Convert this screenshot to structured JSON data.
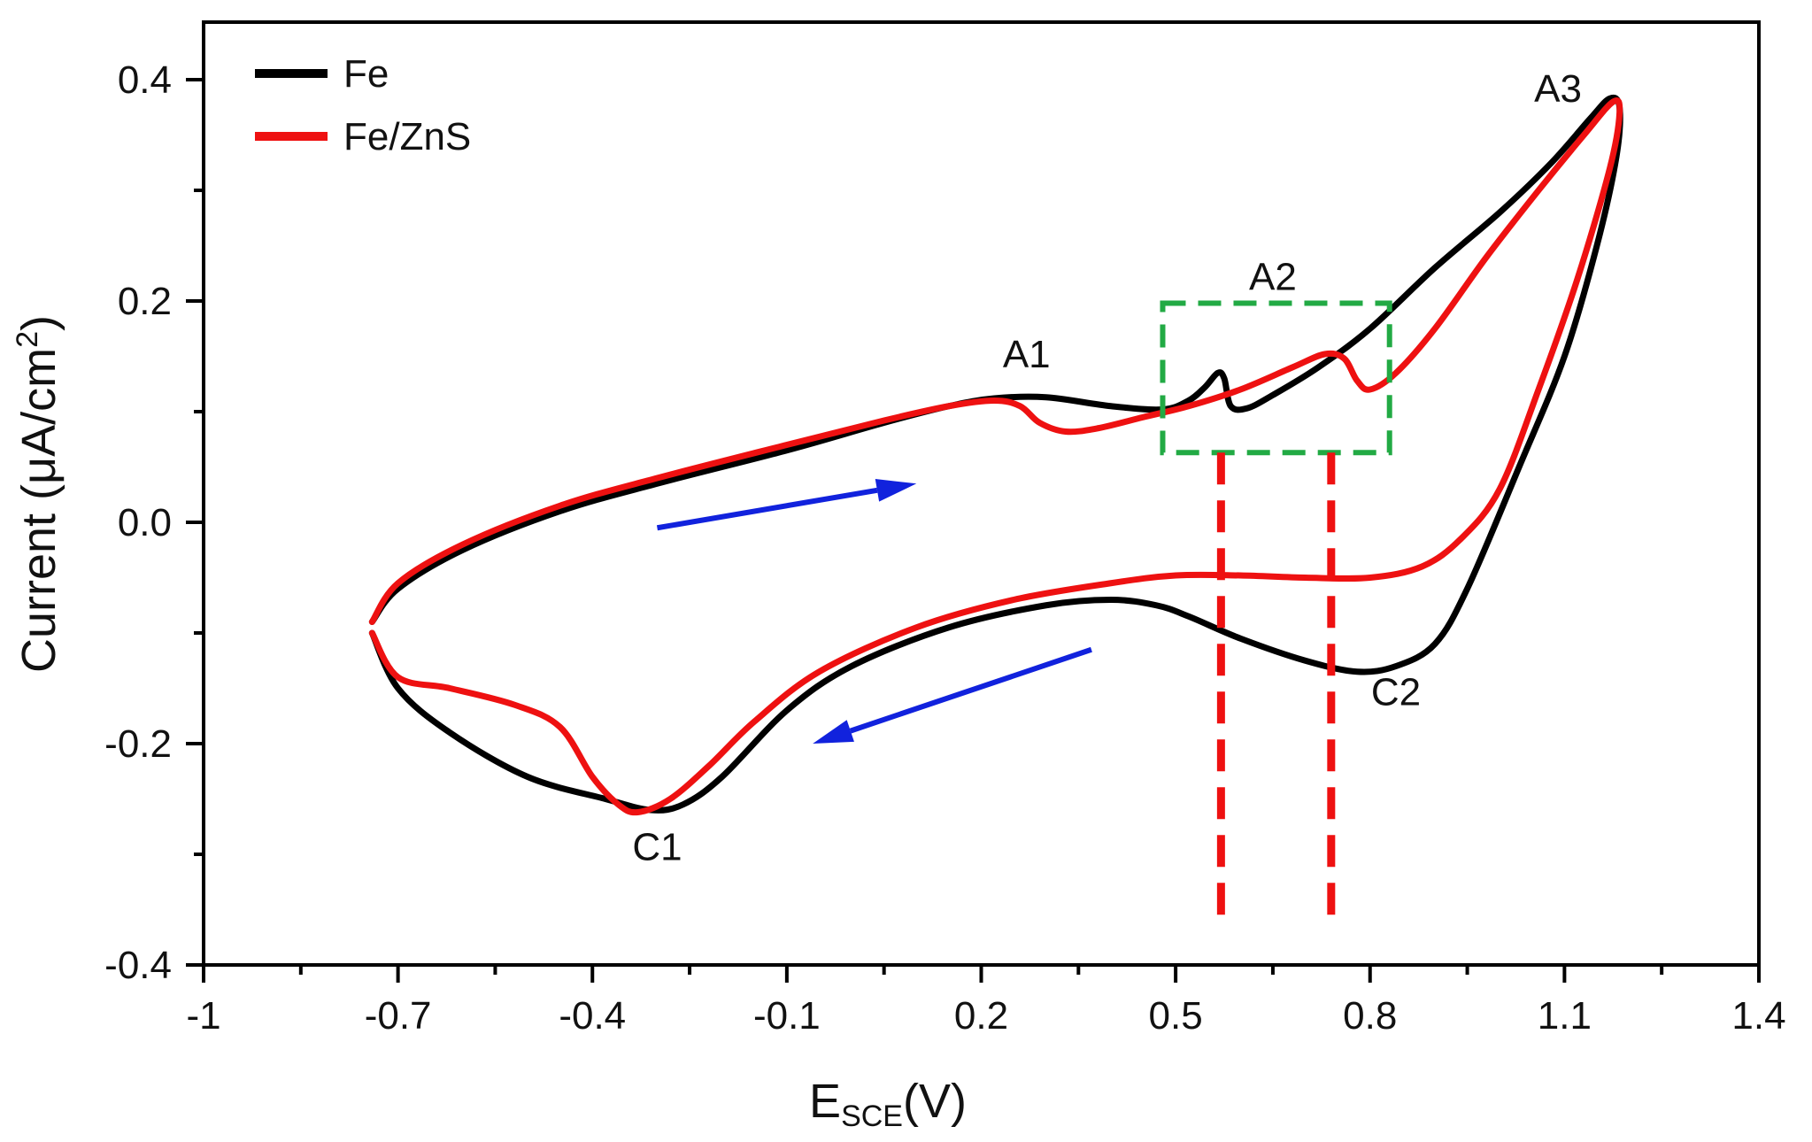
{
  "chart_data": {
    "type": "line",
    "title": "",
    "xlabel": {
      "main": "E",
      "sub": "SCE",
      "unit": "(V)"
    },
    "ylabel": {
      "main": "Current (μA/cm",
      "sup": "2",
      "end": ")"
    },
    "xlim": [
      -1,
      1.4
    ],
    "ylim": [
      -0.4,
      0.4
    ],
    "xticks": [
      -1,
      -0.7,
      -0.4,
      -0.1,
      0.2,
      0.5,
      0.8,
      1.1,
      1.4
    ],
    "xtick_labels": [
      "-1",
      "-0.7",
      "-0.4",
      "-0.1",
      "0.2",
      "0.5",
      "0.8",
      "1.1",
      "1.4"
    ],
    "yticks": [
      0.4,
      0.2,
      0.0,
      -0.2,
      -0.4
    ],
    "ytick_labels": [
      "0.4",
      "0.2",
      "0.0",
      "-0.2",
      "-0.4"
    ],
    "grid": false,
    "legend_position": "top-left",
    "series": [
      {
        "name": "Fe",
        "color": "#000000",
        "points": [
          [
            -0.74,
            -0.09
          ],
          [
            -0.7,
            -0.06
          ],
          [
            -0.6,
            -0.025
          ],
          [
            -0.45,
            0.01
          ],
          [
            -0.3,
            0.035
          ],
          [
            -0.1,
            0.065
          ],
          [
            0.05,
            0.09
          ],
          [
            0.15,
            0.105
          ],
          [
            0.22,
            0.112
          ],
          [
            0.3,
            0.113
          ],
          [
            0.4,
            0.105
          ],
          [
            0.48,
            0.102
          ],
          [
            0.52,
            0.11
          ],
          [
            0.545,
            0.122
          ],
          [
            0.565,
            0.135
          ],
          [
            0.575,
            0.13
          ],
          [
            0.585,
            0.105
          ],
          [
            0.61,
            0.103
          ],
          [
            0.65,
            0.115
          ],
          [
            0.72,
            0.14
          ],
          [
            0.8,
            0.175
          ],
          [
            0.9,
            0.23
          ],
          [
            1.0,
            0.28
          ],
          [
            1.08,
            0.325
          ],
          [
            1.14,
            0.365
          ],
          [
            1.17,
            0.383
          ],
          [
            1.185,
            0.375
          ],
          [
            1.18,
            0.33
          ],
          [
            1.15,
            0.25
          ],
          [
            1.1,
            0.15
          ],
          [
            1.03,
            0.05
          ],
          [
            0.95,
            -0.06
          ],
          [
            0.9,
            -0.11
          ],
          [
            0.84,
            -0.13
          ],
          [
            0.78,
            -0.135
          ],
          [
            0.7,
            -0.125
          ],
          [
            0.6,
            -0.105
          ],
          [
            0.52,
            -0.085
          ],
          [
            0.47,
            -0.075
          ],
          [
            0.4,
            -0.07
          ],
          [
            0.3,
            -0.075
          ],
          [
            0.15,
            -0.095
          ],
          [
            0.0,
            -0.13
          ],
          [
            -0.1,
            -0.17
          ],
          [
            -0.2,
            -0.23
          ],
          [
            -0.26,
            -0.255
          ],
          [
            -0.31,
            -0.26
          ],
          [
            -0.38,
            -0.25
          ],
          [
            -0.5,
            -0.23
          ],
          [
            -0.62,
            -0.19
          ],
          [
            -0.7,
            -0.15
          ],
          [
            -0.74,
            -0.1
          ]
        ]
      },
      {
        "name": "Fe/ZnS",
        "color": "#ee1111",
        "points": [
          [
            -0.74,
            -0.09
          ],
          [
            -0.7,
            -0.055
          ],
          [
            -0.6,
            -0.02
          ],
          [
            -0.45,
            0.015
          ],
          [
            -0.3,
            0.04
          ],
          [
            -0.1,
            0.07
          ],
          [
            0.05,
            0.092
          ],
          [
            0.15,
            0.105
          ],
          [
            0.22,
            0.11
          ],
          [
            0.26,
            0.105
          ],
          [
            0.29,
            0.09
          ],
          [
            0.33,
            0.082
          ],
          [
            0.38,
            0.085
          ],
          [
            0.45,
            0.095
          ],
          [
            0.52,
            0.105
          ],
          [
            0.6,
            0.12
          ],
          [
            0.68,
            0.14
          ],
          [
            0.73,
            0.152
          ],
          [
            0.76,
            0.148
          ],
          [
            0.78,
            0.128
          ],
          [
            0.8,
            0.12
          ],
          [
            0.84,
            0.135
          ],
          [
            0.9,
            0.175
          ],
          [
            0.98,
            0.24
          ],
          [
            1.06,
            0.3
          ],
          [
            1.13,
            0.35
          ],
          [
            1.175,
            0.38
          ],
          [
            1.185,
            0.37
          ],
          [
            1.17,
            0.32
          ],
          [
            1.12,
            0.22
          ],
          [
            1.06,
            0.12
          ],
          [
            1.0,
            0.03
          ],
          [
            0.94,
            -0.015
          ],
          [
            0.88,
            -0.04
          ],
          [
            0.8,
            -0.05
          ],
          [
            0.7,
            -0.05
          ],
          [
            0.6,
            -0.048
          ],
          [
            0.5,
            -0.048
          ],
          [
            0.4,
            -0.055
          ],
          [
            0.25,
            -0.07
          ],
          [
            0.1,
            -0.095
          ],
          [
            -0.05,
            -0.135
          ],
          [
            -0.15,
            -0.18
          ],
          [
            -0.22,
            -0.22
          ],
          [
            -0.28,
            -0.25
          ],
          [
            -0.33,
            -0.262
          ],
          [
            -0.36,
            -0.255
          ],
          [
            -0.4,
            -0.23
          ],
          [
            -0.45,
            -0.185
          ],
          [
            -0.52,
            -0.165
          ],
          [
            -0.62,
            -0.15
          ],
          [
            -0.7,
            -0.14
          ],
          [
            -0.74,
            -0.1
          ]
        ]
      }
    ],
    "annotations": [
      {
        "text": "A1",
        "x": 0.27,
        "y": 0.14
      },
      {
        "text": "A2",
        "x": 0.65,
        "y": 0.21
      },
      {
        "text": "A3",
        "x": 1.09,
        "y": 0.38
      },
      {
        "text": "C1",
        "x": -0.3,
        "y": -0.305
      },
      {
        "text": "C2",
        "x": 0.84,
        "y": -0.165
      }
    ],
    "highlight_box": {
      "x0": 0.48,
      "x1": 0.83,
      "y0": 0.063,
      "y1": 0.198,
      "color": "#22aa44"
    },
    "reference_lines": [
      {
        "x": 0.57,
        "y_from": 0.063,
        "y_to": -0.365,
        "color": "#ee1111"
      },
      {
        "x": 0.74,
        "y_from": 0.063,
        "y_to": -0.36,
        "color": "#ee1111"
      }
    ],
    "direction_arrows": [
      {
        "from": [
          -0.3,
          -0.005
        ],
        "to": [
          0.1,
          0.035
        ],
        "color": "#1122dd"
      },
      {
        "from": [
          0.37,
          -0.115
        ],
        "to": [
          -0.06,
          -0.2
        ],
        "color": "#1122dd"
      }
    ]
  }
}
